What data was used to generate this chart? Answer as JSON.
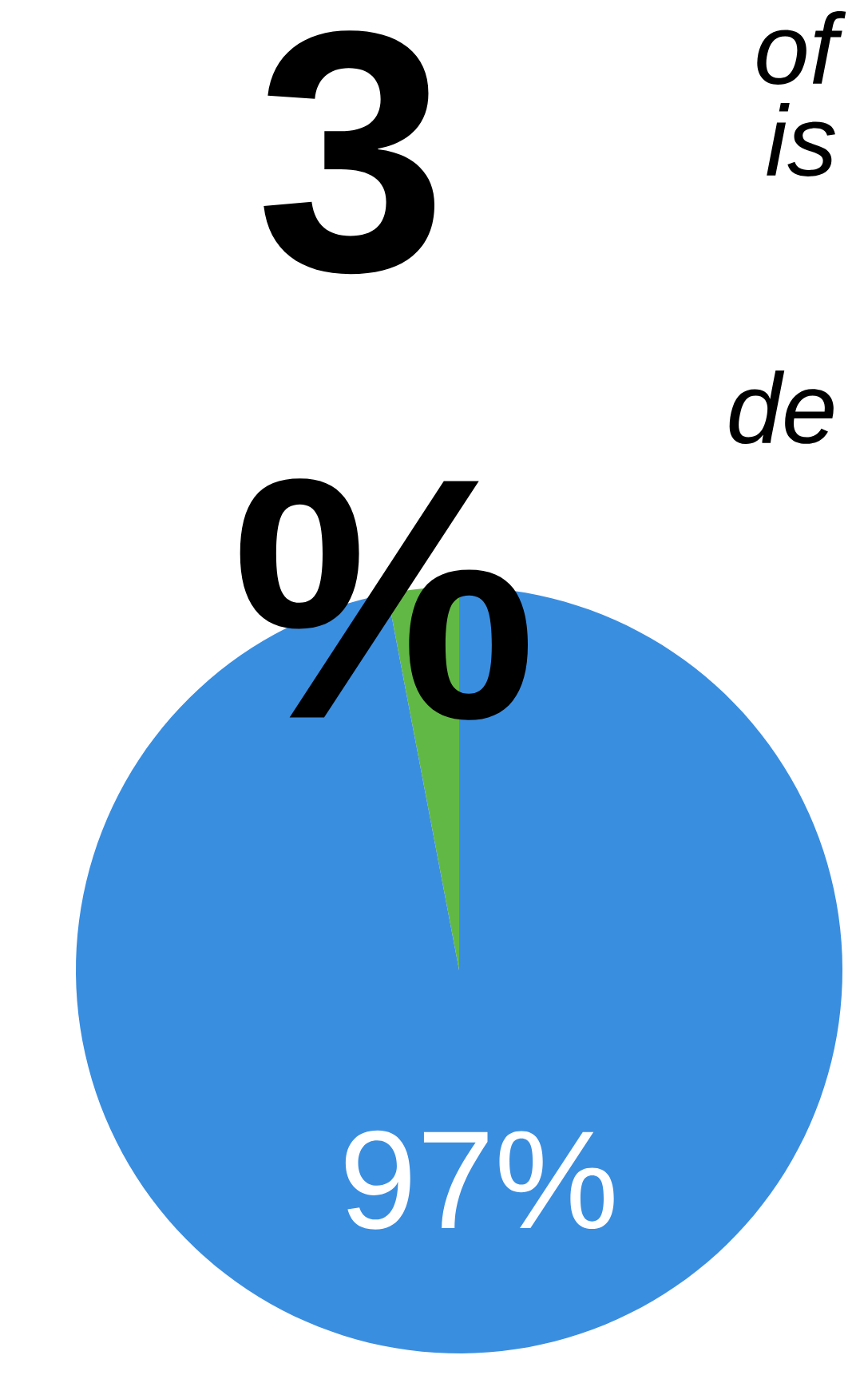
{
  "chart_data": {
    "type": "pie",
    "categories": [
      null,
      null
    ],
    "values": [
      3,
      97
    ],
    "colors": [
      "#62b845",
      "#3a8ee0"
    ],
    "value_labels": [
      "3 %",
      "97%"
    ],
    "annotations": [
      "of",
      "is",
      "de"
    ]
  }
}
